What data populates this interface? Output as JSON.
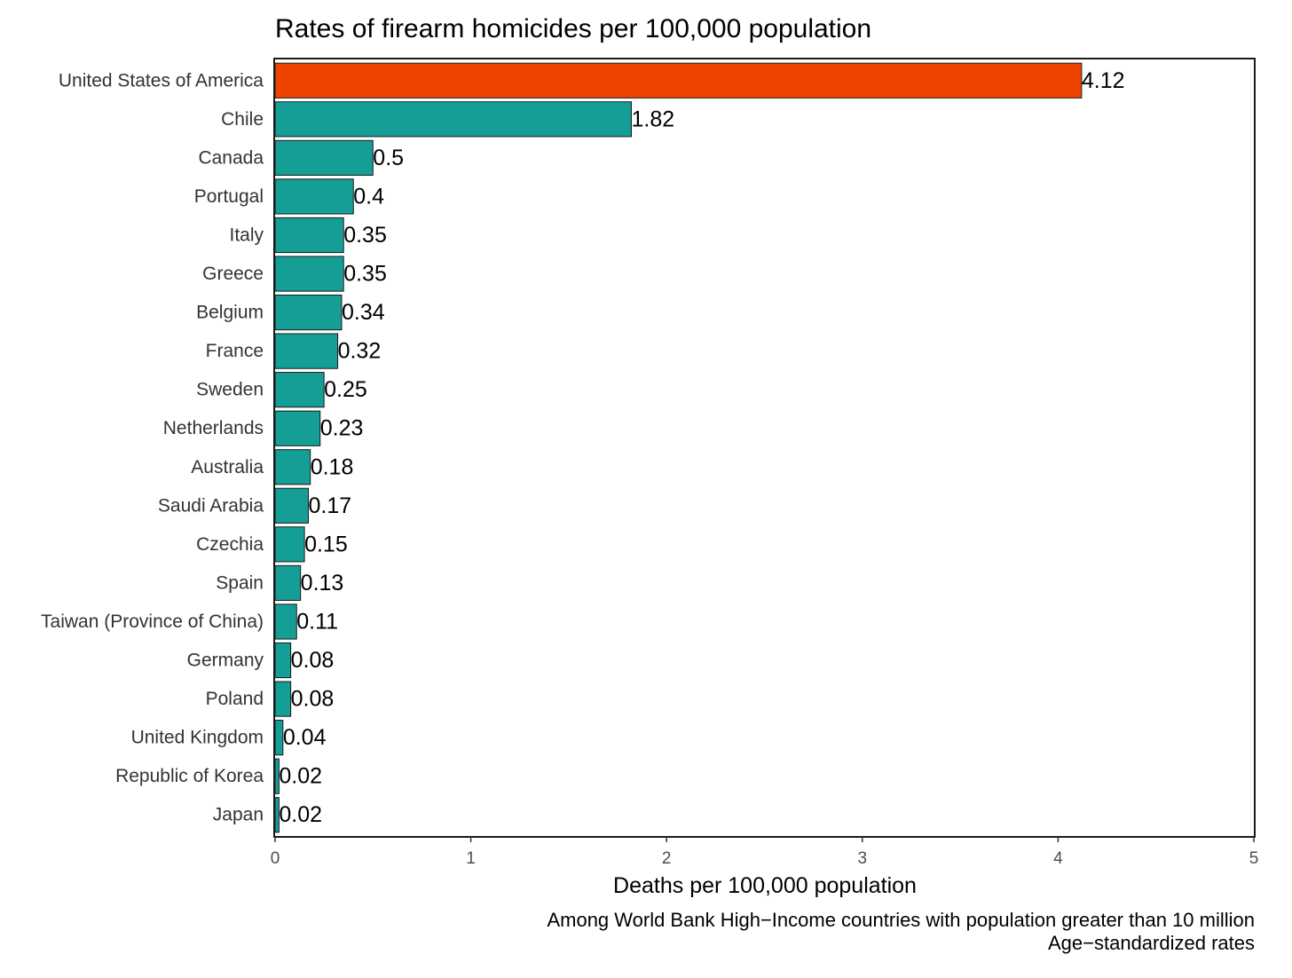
{
  "chart_data": {
    "type": "bar",
    "orientation": "horizontal",
    "title": "Rates of firearm homicides per 100,000 population",
    "xlabel": "Deaths per 100,000 population",
    "ylabel": "",
    "xlim": [
      0,
      5
    ],
    "xticks": [
      0,
      1,
      2,
      3,
      4,
      5
    ],
    "grid": false,
    "categories": [
      "United States of America",
      "Chile",
      "Canada",
      "Portugal",
      "Italy",
      "Greece",
      "Belgium",
      "France",
      "Sweden",
      "Netherlands",
      "Australia",
      "Saudi Arabia",
      "Czechia",
      "Spain",
      "Taiwan (Province of China)",
      "Germany",
      "Poland",
      "United Kingdom",
      "Republic of Korea",
      "Japan"
    ],
    "values": [
      4.12,
      1.82,
      0.5,
      0.4,
      0.35,
      0.35,
      0.34,
      0.32,
      0.25,
      0.23,
      0.18,
      0.17,
      0.15,
      0.13,
      0.11,
      0.08,
      0.08,
      0.04,
      0.02,
      0.02
    ],
    "value_labels": [
      "4.12",
      "1.82",
      "0.5",
      "0.4",
      "0.35",
      "0.35",
      "0.34",
      "0.32",
      "0.25",
      "0.23",
      "0.18",
      "0.17",
      "0.15",
      "0.13",
      "0.11",
      "0.08",
      "0.08",
      "0.04",
      "0.02",
      "0.02"
    ],
    "highlight_category": "United States of America",
    "colors": {
      "highlight": "#EE4400",
      "default": "#149E96",
      "bar_outline": "#1a1a1a",
      "frame": "#1a1a1a"
    },
    "caption_lines": [
      "Among World Bank High−Income countries with population greater than 10 million",
      "Age−standardized rates"
    ]
  }
}
